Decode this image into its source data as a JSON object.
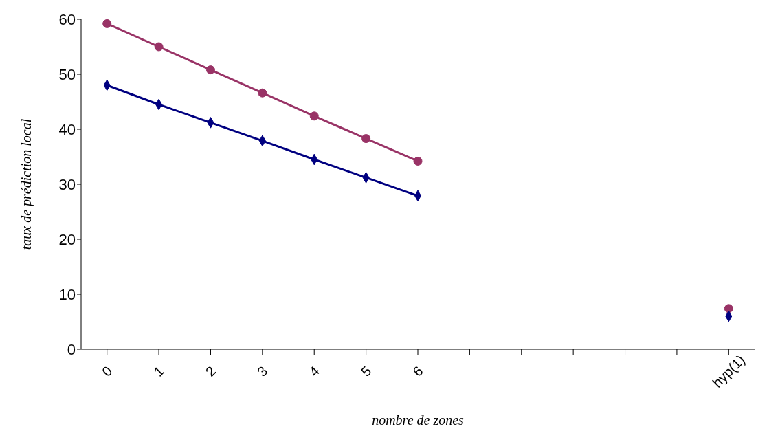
{
  "chart_data": {
    "type": "line",
    "xlabel": "nombre de zones",
    "ylabel": "taux de prédiction local",
    "categories": [
      "0",
      "1",
      "2",
      "3",
      "4",
      "5",
      "6",
      null,
      null,
      null,
      null,
      null,
      "hyp(1)"
    ],
    "series": [
      {
        "color": "#993366",
        "marker": "circle",
        "values": [
          59.2,
          55.0,
          50.8,
          46.6,
          42.4,
          38.3,
          34.2,
          null,
          null,
          null,
          null,
          null,
          7.4
        ]
      },
      {
        "color": "#000080",
        "marker": "diamond",
        "values": [
          48.0,
          44.5,
          41.2,
          37.9,
          34.5,
          31.2,
          27.9,
          null,
          null,
          null,
          null,
          null,
          6.0
        ]
      }
    ],
    "ylim": [
      0,
      60
    ],
    "yticks": [
      0,
      10,
      20,
      30,
      40,
      50,
      60
    ],
    "grid": false,
    "legend": false
  }
}
